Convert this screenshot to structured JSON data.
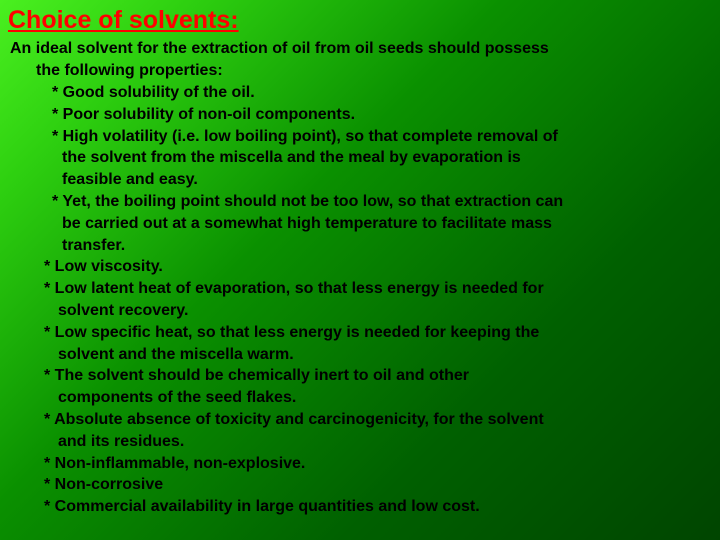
{
  "title": "Choice of solvents:",
  "intro": "An ideal solvent for the extraction of oil from oil seeds should possess",
  "intro_cont": "the following properties:",
  "b1": "* Good solubility of the oil.",
  "b2": "* Poor solubility of non-oil components.",
  "b3": "* High volatility (i.e. low boiling point), so that complete removal of",
  "b3a": "the solvent from the miscella and the meal by evaporation is",
  "b3b": "feasible and easy.",
  "b4": "* Yet, the boiling point should not be too low, so that extraction can",
  "b4a": "be carried out at a somewhat high temperature to facilitate mass",
  "b4b": "transfer.",
  "b5": "* Low viscosity.",
  "b6": "* Low latent heat of evaporation, so that less energy is needed for",
  "b6a": "solvent recovery.",
  "b7": "* Low specific heat, so that less energy is needed for keeping the",
  "b7a": "solvent and the miscella warm.",
  "b8": "* The solvent should be chemically inert to oil and other",
  "b8a": "components of the seed flakes.",
  "b9": "* Absolute absence of toxicity and carcinogenicity, for the solvent",
  "b9a": "and its residues.",
  "b10": "* Non-inflammable, non-explosive.",
  "b11": "* Non-corrosive",
  "b12": "* Commercial availability in large quantities and low cost.",
  "colors": {
    "title_color": "#ff0000",
    "text_color": "#000000",
    "bg_gradient_start": "#4af020",
    "bg_gradient_end": "#004500"
  },
  "typography": {
    "title_fontsize": 25,
    "body_fontsize": 16,
    "font_family": "Arial",
    "font_weight": "bold"
  }
}
